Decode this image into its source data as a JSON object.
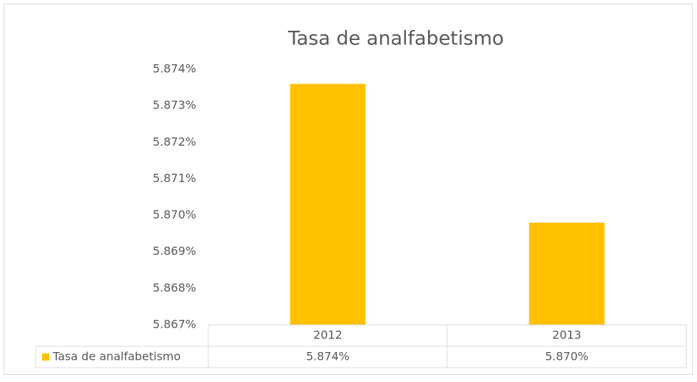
{
  "chart_data": {
    "type": "bar",
    "title": "Tasa de analfabetismo",
    "categories": [
      "2012",
      "2013"
    ],
    "series": [
      {
        "name": "Tasa de analfabetismo",
        "color": "#ffc000",
        "values": [
          5.8736,
          5.8698
        ],
        "value_labels": [
          "5.874%",
          "5.870%"
        ]
      }
    ],
    "ylim": [
      5.867,
      5.874
    ],
    "yticks": [
      {
        "value": 5.867,
        "label": "5.867%"
      },
      {
        "value": 5.868,
        "label": "5.868%"
      },
      {
        "value": 5.869,
        "label": "5.869%"
      },
      {
        "value": 5.87,
        "label": "5.870%"
      },
      {
        "value": 5.871,
        "label": "5.871%"
      },
      {
        "value": 5.872,
        "label": "5.872%"
      },
      {
        "value": 5.873,
        "label": "5.873%"
      },
      {
        "value": 5.874,
        "label": "5.874%"
      }
    ],
    "grid": false,
    "data_table": true
  }
}
